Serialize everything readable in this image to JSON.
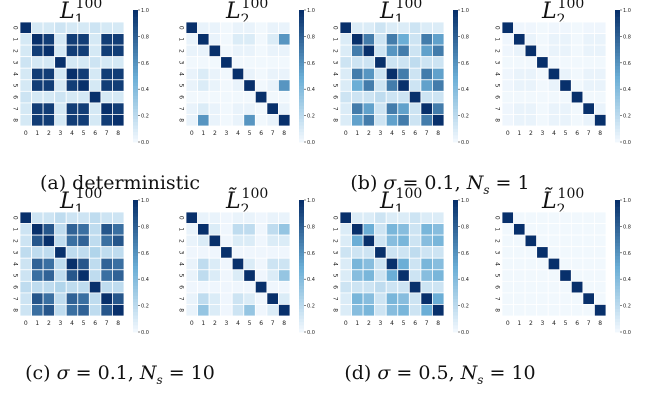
{
  "figure": {
    "captions": [
      {
        "tag": "(a)",
        "text": "deterministic"
      },
      {
        "tag": "(b)",
        "text": "σ = 0.1, N_s = 1"
      },
      {
        "tag": "(c)",
        "text": "σ = 0.1, N_s = 10"
      },
      {
        "tag": "(d)",
        "text": "σ = 0.5, N_s = 10"
      }
    ],
    "title_L1": "L_1^100",
    "title_L2": "L̃_2^100",
    "colormap": {
      "low": "#f7fbff",
      "mid": "#6baed6",
      "high": "#08306b"
    }
  },
  "chart_data": [
    {
      "type": "heatmap",
      "panel": "a",
      "title": "L_1^100",
      "xticks": [
        "0",
        "1",
        "2",
        "3",
        "4",
        "5",
        "6",
        "7",
        "8"
      ],
      "yticks": [
        "0",
        "1",
        "2",
        "3",
        "4",
        "5",
        "6",
        "7",
        "8"
      ],
      "colorbar_ticks": [
        "0.0",
        "0.2",
        "0.4",
        "0.6",
        "0.8",
        "1.0"
      ],
      "vmin": 0,
      "vmax": 1,
      "values": [
        [
          1.0,
          0.12,
          0.12,
          0.15,
          0.12,
          0.12,
          0.15,
          0.12,
          0.12
        ],
        [
          0.12,
          1.0,
          0.95,
          0.12,
          0.95,
          0.95,
          0.12,
          0.95,
          0.95
        ],
        [
          0.12,
          0.95,
          1.0,
          0.12,
          0.95,
          0.95,
          0.12,
          0.95,
          0.95
        ],
        [
          0.15,
          0.12,
          0.12,
          1.0,
          0.12,
          0.12,
          0.15,
          0.12,
          0.12
        ],
        [
          0.12,
          0.95,
          0.95,
          0.12,
          1.0,
          0.95,
          0.12,
          0.95,
          0.95
        ],
        [
          0.12,
          0.95,
          0.95,
          0.12,
          0.95,
          1.0,
          0.12,
          0.95,
          0.95
        ],
        [
          0.15,
          0.12,
          0.12,
          0.15,
          0.12,
          0.12,
          1.0,
          0.12,
          0.12
        ],
        [
          0.12,
          0.95,
          0.95,
          0.12,
          0.95,
          0.95,
          0.12,
          1.0,
          0.95
        ],
        [
          0.12,
          0.95,
          0.95,
          0.12,
          0.95,
          0.95,
          0.12,
          0.95,
          1.0
        ]
      ]
    },
    {
      "type": "heatmap",
      "panel": "a",
      "title": "L̃_2^100",
      "xticks": [
        "0",
        "1",
        "2",
        "3",
        "4",
        "5",
        "6",
        "7",
        "8"
      ],
      "yticks": [
        "0",
        "1",
        "2",
        "3",
        "4",
        "5",
        "6",
        "7",
        "8"
      ],
      "colorbar_ticks": [
        "0.0",
        "0.2",
        "0.4",
        "0.6",
        "0.8",
        "1.0"
      ],
      "vmin": 0,
      "vmax": 1,
      "values": [
        [
          1.0,
          0.05,
          0.05,
          0.02,
          0.05,
          0.05,
          0.02,
          0.05,
          0.05
        ],
        [
          0.05,
          1.0,
          0.05,
          0.02,
          0.1,
          0.1,
          0.02,
          0.1,
          0.6
        ],
        [
          0.05,
          0.05,
          1.0,
          0.02,
          0.05,
          0.05,
          0.02,
          0.05,
          0.05
        ],
        [
          0.02,
          0.02,
          0.02,
          1.0,
          0.02,
          0.02,
          0.02,
          0.02,
          0.02
        ],
        [
          0.05,
          0.1,
          0.05,
          0.02,
          1.0,
          0.05,
          0.02,
          0.05,
          0.05
        ],
        [
          0.05,
          0.1,
          0.05,
          0.02,
          0.05,
          1.0,
          0.02,
          0.05,
          0.6
        ],
        [
          0.02,
          0.02,
          0.02,
          0.02,
          0.02,
          0.02,
          1.0,
          0.02,
          0.02
        ],
        [
          0.05,
          0.1,
          0.05,
          0.02,
          0.05,
          0.05,
          0.02,
          1.0,
          0.05
        ],
        [
          0.05,
          0.6,
          0.05,
          0.02,
          0.05,
          0.6,
          0.02,
          0.05,
          1.0
        ]
      ]
    },
    {
      "type": "heatmap",
      "panel": "b",
      "title": "L_1^100",
      "xticks": [
        "0",
        "1",
        "2",
        "3",
        "4",
        "5",
        "6",
        "7",
        "8"
      ],
      "yticks": [
        "0",
        "1",
        "2",
        "3",
        "4",
        "5",
        "6",
        "7",
        "8"
      ],
      "colorbar_ticks": [
        "0.0",
        "0.2",
        "0.4",
        "0.6",
        "0.8",
        "1.0"
      ],
      "vmin": 0,
      "vmax": 1,
      "values": [
        [
          1.0,
          0.1,
          0.1,
          0.15,
          0.1,
          0.1,
          0.15,
          0.1,
          0.1
        ],
        [
          0.1,
          1.0,
          0.7,
          0.15,
          0.7,
          0.5,
          0.15,
          0.7,
          0.55
        ],
        [
          0.1,
          0.7,
          1.0,
          0.15,
          0.6,
          0.7,
          0.15,
          0.55,
          0.7
        ],
        [
          0.15,
          0.15,
          0.15,
          1.0,
          0.15,
          0.15,
          0.2,
          0.15,
          0.15
        ],
        [
          0.1,
          0.7,
          0.6,
          0.15,
          1.0,
          0.7,
          0.15,
          0.7,
          0.55
        ],
        [
          0.1,
          0.5,
          0.7,
          0.15,
          0.7,
          1.0,
          0.15,
          0.55,
          0.7
        ],
        [
          0.15,
          0.15,
          0.15,
          0.2,
          0.15,
          0.15,
          1.0,
          0.15,
          0.15
        ],
        [
          0.1,
          0.7,
          0.55,
          0.15,
          0.7,
          0.55,
          0.15,
          1.0,
          0.7
        ],
        [
          0.1,
          0.55,
          0.7,
          0.15,
          0.55,
          0.7,
          0.15,
          0.7,
          1.0
        ]
      ]
    },
    {
      "type": "heatmap",
      "panel": "b",
      "title": "L̃_2^100",
      "xticks": [
        "0",
        "1",
        "2",
        "3",
        "4",
        "5",
        "6",
        "7",
        "8"
      ],
      "yticks": [
        "0",
        "1",
        "2",
        "3",
        "4",
        "5",
        "6",
        "7",
        "8"
      ],
      "colorbar_ticks": [
        "0.0",
        "0.2",
        "0.4",
        "0.6",
        "0.8",
        "1.0"
      ],
      "vmin": 0,
      "vmax": 1,
      "values": [
        [
          1.0,
          0.03,
          0.03,
          0.02,
          0.03,
          0.03,
          0.02,
          0.03,
          0.03
        ],
        [
          0.03,
          1.0,
          0.05,
          0.02,
          0.05,
          0.05,
          0.02,
          0.05,
          0.05
        ],
        [
          0.03,
          0.05,
          1.0,
          0.02,
          0.05,
          0.05,
          0.02,
          0.05,
          0.05
        ],
        [
          0.02,
          0.02,
          0.02,
          1.0,
          0.02,
          0.02,
          0.02,
          0.02,
          0.02
        ],
        [
          0.03,
          0.05,
          0.05,
          0.02,
          1.0,
          0.05,
          0.02,
          0.05,
          0.05
        ],
        [
          0.03,
          0.05,
          0.05,
          0.02,
          0.05,
          1.0,
          0.02,
          0.05,
          0.05
        ],
        [
          0.02,
          0.02,
          0.02,
          0.02,
          0.02,
          0.02,
          1.0,
          0.02,
          0.02
        ],
        [
          0.03,
          0.05,
          0.05,
          0.02,
          0.05,
          0.05,
          0.02,
          1.0,
          0.05
        ],
        [
          0.03,
          0.05,
          0.05,
          0.02,
          0.05,
          0.05,
          0.02,
          0.05,
          1.0
        ]
      ]
    },
    {
      "type": "heatmap",
      "panel": "c",
      "title": "L_1^100",
      "xticks": [
        "0",
        "1",
        "2",
        "3",
        "4",
        "5",
        "6",
        "7",
        "8"
      ],
      "yticks": [
        "0",
        "1",
        "2",
        "3",
        "4",
        "5",
        "6",
        "7",
        "8"
      ],
      "colorbar_ticks": [
        "0.0",
        "0.2",
        "0.4",
        "0.6",
        "0.8",
        "1.0"
      ],
      "vmin": 0,
      "vmax": 1,
      "values": [
        [
          1.0,
          0.15,
          0.15,
          0.2,
          0.15,
          0.15,
          0.2,
          0.15,
          0.15
        ],
        [
          0.15,
          1.0,
          0.85,
          0.2,
          0.8,
          0.75,
          0.2,
          0.85,
          0.75
        ],
        [
          0.15,
          0.85,
          1.0,
          0.2,
          0.75,
          0.8,
          0.2,
          0.75,
          0.85
        ],
        [
          0.2,
          0.2,
          0.2,
          1.0,
          0.2,
          0.2,
          0.25,
          0.2,
          0.2
        ],
        [
          0.15,
          0.8,
          0.75,
          0.2,
          1.0,
          0.85,
          0.2,
          0.8,
          0.75
        ],
        [
          0.15,
          0.75,
          0.8,
          0.2,
          0.85,
          1.0,
          0.2,
          0.75,
          0.8
        ],
        [
          0.2,
          0.2,
          0.2,
          0.25,
          0.2,
          0.2,
          1.0,
          0.2,
          0.2
        ],
        [
          0.15,
          0.85,
          0.75,
          0.2,
          0.8,
          0.75,
          0.2,
          1.0,
          0.85
        ],
        [
          0.15,
          0.75,
          0.85,
          0.2,
          0.75,
          0.8,
          0.2,
          0.85,
          1.0
        ]
      ]
    },
    {
      "type": "heatmap",
      "panel": "c",
      "title": "L̃_2^100",
      "xticks": [
        "0",
        "1",
        "2",
        "3",
        "4",
        "5",
        "6",
        "7",
        "8"
      ],
      "yticks": [
        "0",
        "1",
        "2",
        "3",
        "4",
        "5",
        "6",
        "7",
        "8"
      ],
      "colorbar_ticks": [
        "0.0",
        "0.2",
        "0.4",
        "0.6",
        "0.8",
        "1.0"
      ],
      "vmin": 0,
      "vmax": 1,
      "values": [
        [
          1.0,
          0.05,
          0.05,
          0.03,
          0.05,
          0.05,
          0.03,
          0.05,
          0.05
        ],
        [
          0.05,
          1.0,
          0.1,
          0.03,
          0.2,
          0.2,
          0.03,
          0.2,
          0.35
        ],
        [
          0.05,
          0.1,
          1.0,
          0.03,
          0.1,
          0.1,
          0.03,
          0.1,
          0.1
        ],
        [
          0.03,
          0.03,
          0.03,
          1.0,
          0.03,
          0.03,
          0.03,
          0.03,
          0.03
        ],
        [
          0.05,
          0.2,
          0.1,
          0.03,
          1.0,
          0.1,
          0.03,
          0.15,
          0.15
        ],
        [
          0.05,
          0.2,
          0.1,
          0.03,
          0.1,
          1.0,
          0.03,
          0.1,
          0.35
        ],
        [
          0.03,
          0.03,
          0.03,
          0.03,
          0.03,
          0.03,
          1.0,
          0.03,
          0.03
        ],
        [
          0.05,
          0.2,
          0.1,
          0.03,
          0.15,
          0.1,
          0.03,
          1.0,
          0.1
        ],
        [
          0.05,
          0.35,
          0.1,
          0.03,
          0.15,
          0.35,
          0.03,
          0.1,
          1.0
        ]
      ]
    },
    {
      "type": "heatmap",
      "panel": "d",
      "title": "L_1^100",
      "xticks": [
        "0",
        "1",
        "2",
        "3",
        "4",
        "5",
        "6",
        "7",
        "8"
      ],
      "yticks": [
        "0",
        "1",
        "2",
        "3",
        "4",
        "5",
        "6",
        "7",
        "8"
      ],
      "colorbar_ticks": [
        "0.0",
        "0.2",
        "0.4",
        "0.6",
        "0.8",
        "1.0"
      ],
      "vmin": 0,
      "vmax": 1,
      "values": [
        [
          1.0,
          0.1,
          0.1,
          0.15,
          0.1,
          0.1,
          0.15,
          0.1,
          0.1
        ],
        [
          0.1,
          1.0,
          0.5,
          0.15,
          0.45,
          0.4,
          0.15,
          0.45,
          0.4
        ],
        [
          0.1,
          0.5,
          1.0,
          0.15,
          0.4,
          0.45,
          0.15,
          0.4,
          0.45
        ],
        [
          0.15,
          0.15,
          0.15,
          1.0,
          0.15,
          0.15,
          0.2,
          0.15,
          0.15
        ],
        [
          0.1,
          0.45,
          0.4,
          0.15,
          1.0,
          0.5,
          0.15,
          0.45,
          0.4
        ],
        [
          0.1,
          0.4,
          0.45,
          0.15,
          0.5,
          1.0,
          0.15,
          0.4,
          0.45
        ],
        [
          0.15,
          0.15,
          0.15,
          0.2,
          0.15,
          0.15,
          1.0,
          0.15,
          0.15
        ],
        [
          0.1,
          0.45,
          0.4,
          0.15,
          0.45,
          0.4,
          0.15,
          1.0,
          0.5
        ],
        [
          0.1,
          0.4,
          0.45,
          0.15,
          0.4,
          0.45,
          0.15,
          0.5,
          1.0
        ]
      ]
    },
    {
      "type": "heatmap",
      "panel": "d",
      "title": "L̃_2^100",
      "xticks": [
        "0",
        "1",
        "2",
        "3",
        "4",
        "5",
        "6",
        "7",
        "8"
      ],
      "yticks": [
        "0",
        "1",
        "2",
        "3",
        "4",
        "5",
        "6",
        "7",
        "8"
      ],
      "colorbar_ticks": [
        "0.0",
        "0.2",
        "0.4",
        "0.6",
        "0.8",
        "1.0"
      ],
      "vmin": 0,
      "vmax": 1,
      "values": [
        [
          1.0,
          0.02,
          0.02,
          0.02,
          0.02,
          0.02,
          0.02,
          0.02,
          0.02
        ],
        [
          0.02,
          1.0,
          0.02,
          0.02,
          0.02,
          0.02,
          0.02,
          0.02,
          0.02
        ],
        [
          0.02,
          0.02,
          1.0,
          0.02,
          0.02,
          0.02,
          0.02,
          0.02,
          0.02
        ],
        [
          0.02,
          0.02,
          0.02,
          1.0,
          0.02,
          0.02,
          0.02,
          0.02,
          0.02
        ],
        [
          0.02,
          0.02,
          0.02,
          0.02,
          1.0,
          0.02,
          0.02,
          0.02,
          0.02
        ],
        [
          0.02,
          0.02,
          0.02,
          0.02,
          0.02,
          1.0,
          0.02,
          0.02,
          0.02
        ],
        [
          0.02,
          0.02,
          0.02,
          0.02,
          0.02,
          0.02,
          1.0,
          0.02,
          0.02
        ],
        [
          0.02,
          0.02,
          0.02,
          0.02,
          0.02,
          0.02,
          0.02,
          1.0,
          0.02
        ],
        [
          0.02,
          0.02,
          0.02,
          0.02,
          0.02,
          0.02,
          0.02,
          0.02,
          1.0
        ]
      ]
    }
  ]
}
